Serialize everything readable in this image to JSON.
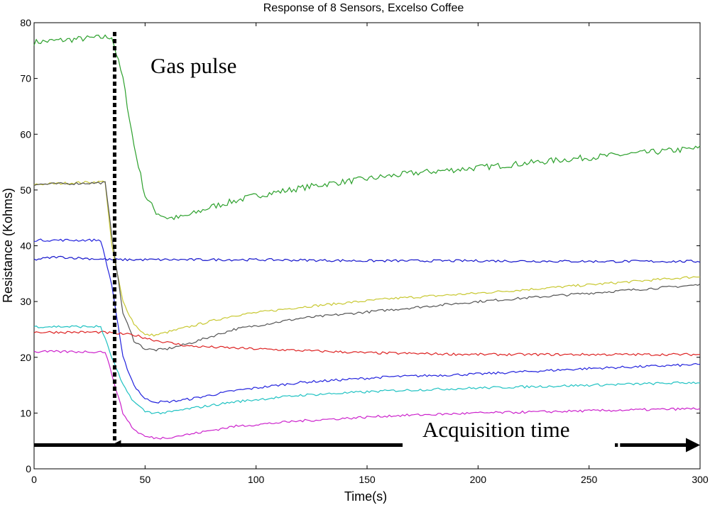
{
  "chart_data": {
    "type": "line",
    "title": "Response of 8 Sensors, Excelso Coffee",
    "xlabel": "Time(s)",
    "ylabel": "Resistance (Kohms)",
    "xlim": [
      0,
      300
    ],
    "ylim": [
      0,
      80
    ],
    "xticks": [
      0,
      50,
      100,
      150,
      200,
      250,
      300
    ],
    "yticks": [
      0,
      10,
      20,
      30,
      40,
      50,
      60,
      70,
      80
    ],
    "grid": false,
    "legend": "none",
    "annotations": {
      "gas_pulse": {
        "text": "Gas pulse",
        "x": 35
      },
      "acquisition": {
        "text": "Acquisition time",
        "x_start": 0,
        "x_end": 300,
        "y": 4
      }
    },
    "series": [
      {
        "color": "#2ca02c",
        "x": [
          0,
          35,
          40,
          45,
          50,
          55,
          60,
          65,
          70,
          80,
          100,
          130,
          170,
          200,
          240,
          270,
          300
        ],
        "y": [
          76.5,
          77.5,
          70,
          58,
          49,
          46,
          45,
          45,
          45.5,
          47,
          49,
          51,
          53,
          54,
          55.5,
          56.5,
          57.5
        ]
      },
      {
        "color": "#c8c832",
        "x": [
          0,
          32,
          35,
          40,
          45,
          50,
          55,
          60,
          70,
          90,
          120,
          160,
          200,
          250,
          300
        ],
        "y": [
          51,
          51.5,
          40,
          30,
          26,
          24,
          24,
          24.5,
          25.5,
          27.5,
          29,
          30.5,
          31.5,
          33,
          34.5
        ]
      },
      {
        "color": "#555555",
        "x": [
          0,
          32,
          35,
          40,
          45,
          50,
          55,
          60,
          70,
          90,
          120,
          160,
          200,
          250,
          300
        ],
        "y": [
          51,
          51.3,
          42,
          28,
          23,
          21.5,
          21.3,
          21.5,
          22.5,
          25,
          27,
          28.5,
          30,
          31.5,
          33
        ]
      },
      {
        "color": "#2222dd",
        "x": [
          0,
          30,
          35,
          40,
          45,
          50,
          55,
          60,
          70,
          90,
          120,
          160,
          200,
          250,
          300
        ],
        "y": [
          41,
          41,
          33,
          20,
          15,
          12.5,
          12,
          12,
          12.5,
          14,
          15.5,
          16.5,
          17,
          18,
          18.7
        ]
      },
      {
        "color": "#1515cc",
        "x": [
          0,
          10,
          35,
          60,
          100,
          150,
          200,
          250,
          300
        ],
        "y": [
          37.5,
          38,
          37.5,
          37.5,
          37.5,
          37.3,
          37.3,
          37.2,
          37.2
        ]
      },
      {
        "color": "#dd2222",
        "x": [
          0,
          30,
          45,
          55,
          70,
          100,
          150,
          200,
          250,
          300
        ],
        "y": [
          24.5,
          24.5,
          24,
          23,
          22,
          21.5,
          20.8,
          20.5,
          20.5,
          20.5
        ]
      },
      {
        "color": "#1fc2c2",
        "x": [
          0,
          30,
          35,
          40,
          45,
          50,
          55,
          60,
          70,
          90,
          120,
          160,
          200,
          250,
          300
        ],
        "y": [
          25.5,
          25.5,
          20,
          15,
          12,
          10.3,
          10,
          10.1,
          10.8,
          12,
          13.2,
          14,
          14.5,
          15,
          15.5
        ]
      },
      {
        "color": "#cc22cc",
        "x": [
          0,
          32,
          35,
          40,
          45,
          50,
          55,
          60,
          70,
          90,
          120,
          160,
          200,
          250,
          300
        ],
        "y": [
          21,
          21,
          17,
          10,
          7,
          5.8,
          5.5,
          5.6,
          6.2,
          7.6,
          8.6,
          9.5,
          10,
          10.4,
          10.8
        ]
      }
    ]
  }
}
